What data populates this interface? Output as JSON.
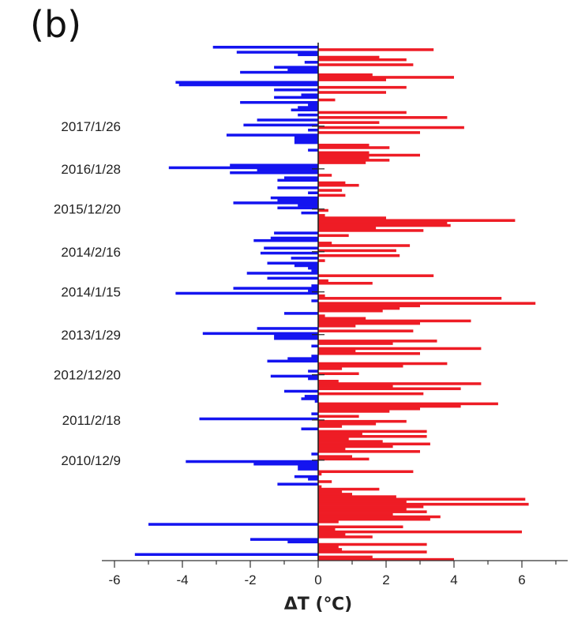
{
  "panel_label": "(b)",
  "colors": {
    "positive": "#ee1c25",
    "negative": "#1414f0",
    "axis": "#333333"
  },
  "chart_data": {
    "type": "bar",
    "orientation": "horizontal",
    "xlabel": "ΔT (℃)",
    "ylabel": "",
    "xlim": [
      -6.6,
      7.4
    ],
    "xticks": [
      -6,
      -4,
      -2,
      0,
      2,
      4,
      6
    ],
    "ylim": [
      0,
      200
    ],
    "date_labels": [
      {
        "label": "2017/1/26",
        "row": 32
      },
      {
        "label": "2016/1/28",
        "row": 49
      },
      {
        "label": "2015/12/20",
        "row": 65
      },
      {
        "label": "2014/2/16",
        "row": 82
      },
      {
        "label": "2014/1/15",
        "row": 98
      },
      {
        "label": "2013/1/29",
        "row": 115
      },
      {
        "label": "2012/12/20",
        "row": 131
      },
      {
        "label": "2011/2/18",
        "row": 149
      },
      {
        "label": "2010/12/9",
        "row": 165
      }
    ],
    "values": [
      -3.1,
      3.4,
      -2.4,
      -0.6,
      1.8,
      2.6,
      -0.4,
      2.8,
      -1.3,
      -0.9,
      -2.3,
      1.6,
      4.0,
      2.0,
      -4.2,
      -4.1,
      2.6,
      -1.3,
      2.0,
      -0.5,
      -1.3,
      0.5,
      -2.3,
      -0.3,
      -0.6,
      -0.8,
      2.6,
      -0.6,
      3.8,
      -1.8,
      1.8,
      -2.2,
      4.3,
      -0.3,
      3.0,
      -2.7,
      -0.7,
      -0.7,
      -0.7,
      1.5,
      2.1,
      -0.3,
      1.5,
      3.0,
      1.5,
      2.1,
      1.4,
      -2.6,
      -4.4,
      -1.8,
      -2.6,
      0.4,
      -1.0,
      -1.2,
      0.8,
      1.2,
      -1.2,
      0.7,
      -0.3,
      0.8,
      -1.4,
      -1.2,
      -2.5,
      -0.6,
      -1.2,
      0.3,
      -0.5,
      0.2,
      2.0,
      5.8,
      3.8,
      3.9,
      1.7,
      3.1,
      -1.3,
      0.9,
      -1.4,
      -1.9,
      0.4,
      2.7,
      -1.6,
      2.3,
      -1.7,
      2.4,
      -0.8,
      0.2,
      -1.5,
      -0.7,
      -0.3,
      -0.2,
      -2.1,
      3.4,
      -1.5,
      0.3,
      1.6,
      -0.2,
      -2.5,
      -0.3,
      -4.2,
      0.2,
      5.4,
      -0.2,
      6.4,
      3.0,
      2.4,
      1.9,
      -1.0,
      0.2,
      1.4,
      4.5,
      3.0,
      1.1,
      -1.8,
      2.8,
      -3.4,
      -1.3,
      -1.3,
      3.5,
      2.2,
      -0.2,
      4.8,
      1.1,
      3.0,
      -0.2,
      -0.9,
      -1.5,
      3.8,
      2.5,
      0.7,
      -0.3,
      1.2,
      -1.4,
      -0.3,
      0.6,
      4.8,
      2.2,
      4.2,
      -1.0,
      3.1,
      -0.4,
      -0.5,
      -0.1,
      5.3,
      4.2,
      3.0,
      2.1,
      -0.2,
      1.2,
      -3.5,
      2.6,
      1.7,
      0.7,
      -0.5,
      3.2,
      1.3,
      3.2,
      0.9,
      1.9,
      3.3,
      2.2,
      0.8,
      3.0,
      -0.2,
      1.0,
      1.5,
      -3.9,
      -1.9,
      -0.6,
      -0.6,
      2.8,
      0.1,
      -0.7,
      -0.3,
      0.4,
      -1.2,
      0.1,
      1.8,
      0.7,
      1.0,
      2.3,
      6.1,
      2.6,
      6.2,
      3.1,
      2.6,
      3.2,
      2.2,
      3.6,
      3.3,
      0.6,
      -5.0,
      2.5,
      0.5,
      6.0,
      0.8,
      1.6,
      -2.0,
      -0.9,
      3.2,
      0.6,
      0.7,
      3.2,
      -5.4,
      1.6,
      4.0
    ]
  }
}
